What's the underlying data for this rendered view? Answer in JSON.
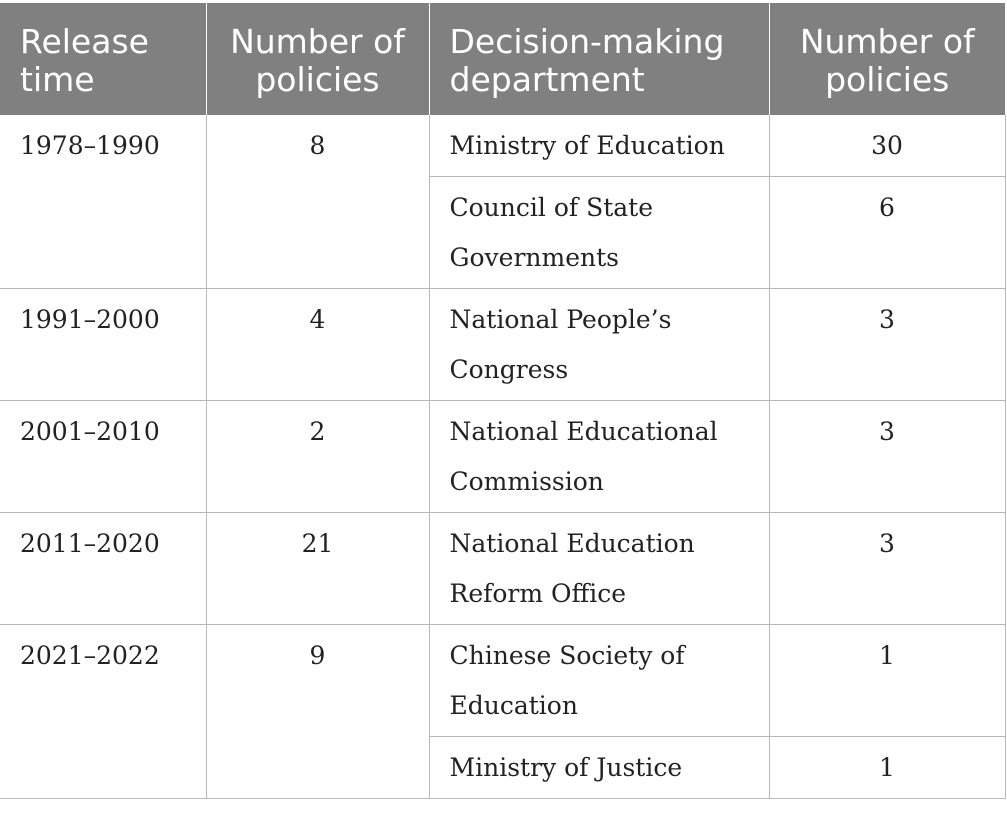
{
  "table": {
    "headers": [
      "Release time",
      "Number of policies",
      "Decision-making department",
      "Number of policies"
    ],
    "periods": [
      {
        "release_time": "1978–1990",
        "count": "8"
      },
      {
        "release_time": "1991–2000",
        "count": "4"
      },
      {
        "release_time": "2001–2010",
        "count": "2"
      },
      {
        "release_time": "2011–2020",
        "count": "21"
      },
      {
        "release_time": "2021–2022",
        "count": "9"
      }
    ],
    "departments": [
      {
        "name": "Ministry of Education",
        "count": "30"
      },
      {
        "name": "Council of State Governments",
        "count": "6"
      },
      {
        "name": "National People’s Congress",
        "count": "3"
      },
      {
        "name": "National Educational Commission",
        "count": "3"
      },
      {
        "name": "National Education Reform Office",
        "count": "3"
      },
      {
        "name": "Chinese Society of Education",
        "count": "1"
      },
      {
        "name": "Ministry of Justice",
        "count": "1"
      }
    ]
  }
}
